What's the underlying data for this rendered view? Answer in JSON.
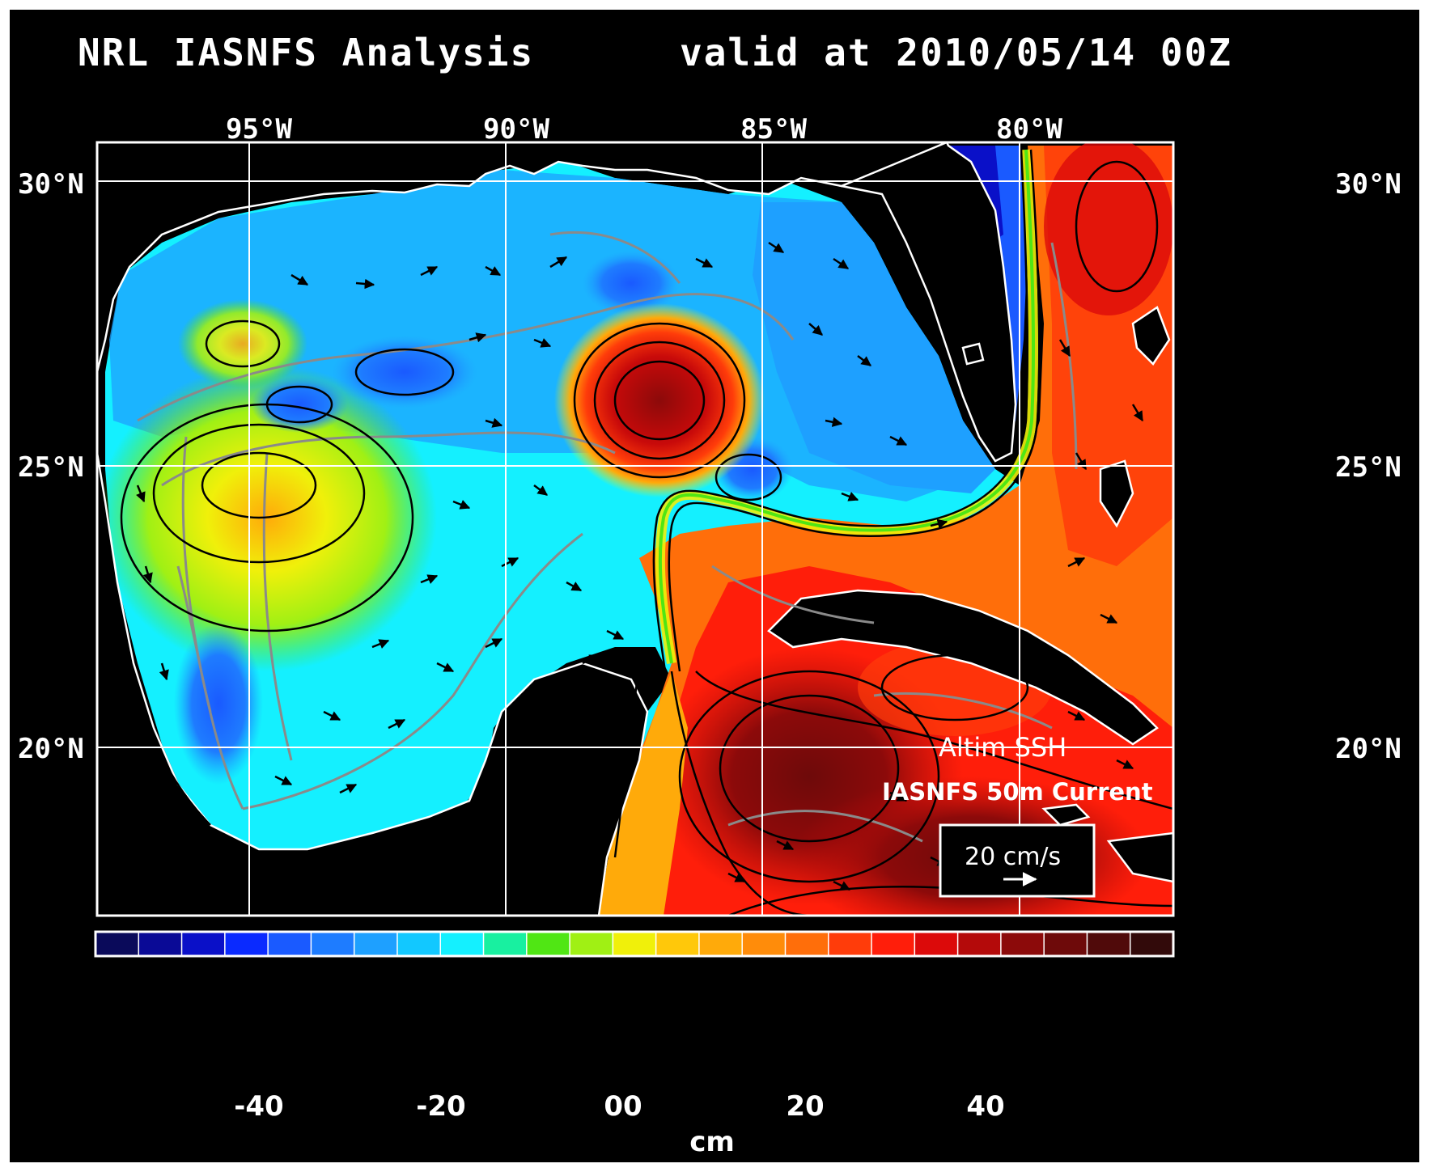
{
  "header": {
    "left_title": "NRL IASNFS   Analysis",
    "right_title": "valid at 2010/05/14 00Z"
  },
  "axes": {
    "longitude_labels": [
      "95°W",
      "90°W",
      "85°W",
      "80°W"
    ],
    "latitude_labels": [
      "30°N",
      "25°N",
      "20°N"
    ]
  },
  "legend": {
    "product": "Altim SSH",
    "current": "IASNFS 50m Current",
    "scale_label": "20 cm/s"
  },
  "colorbar": {
    "tick_labels": [
      "-40",
      "-20",
      "00",
      "20",
      "40"
    ],
    "units": "cm",
    "colors": [
      "#0a0a5a",
      "#0a0a96",
      "#0a10c8",
      "#0a2aff",
      "#1a5aff",
      "#1e7cff",
      "#1ea0ff",
      "#12c8ff",
      "#14f0ff",
      "#18f0a0",
      "#50e614",
      "#a0f014",
      "#f0f00a",
      "#ffc80a",
      "#ffaa0a",
      "#ff8c0a",
      "#ff6e0a",
      "#ff3c0a",
      "#ff1e0a",
      "#dc0a0a",
      "#b40a0a",
      "#8c0a0a",
      "#6e0a0a",
      "#500a0a",
      "#320a0a"
    ]
  }
}
